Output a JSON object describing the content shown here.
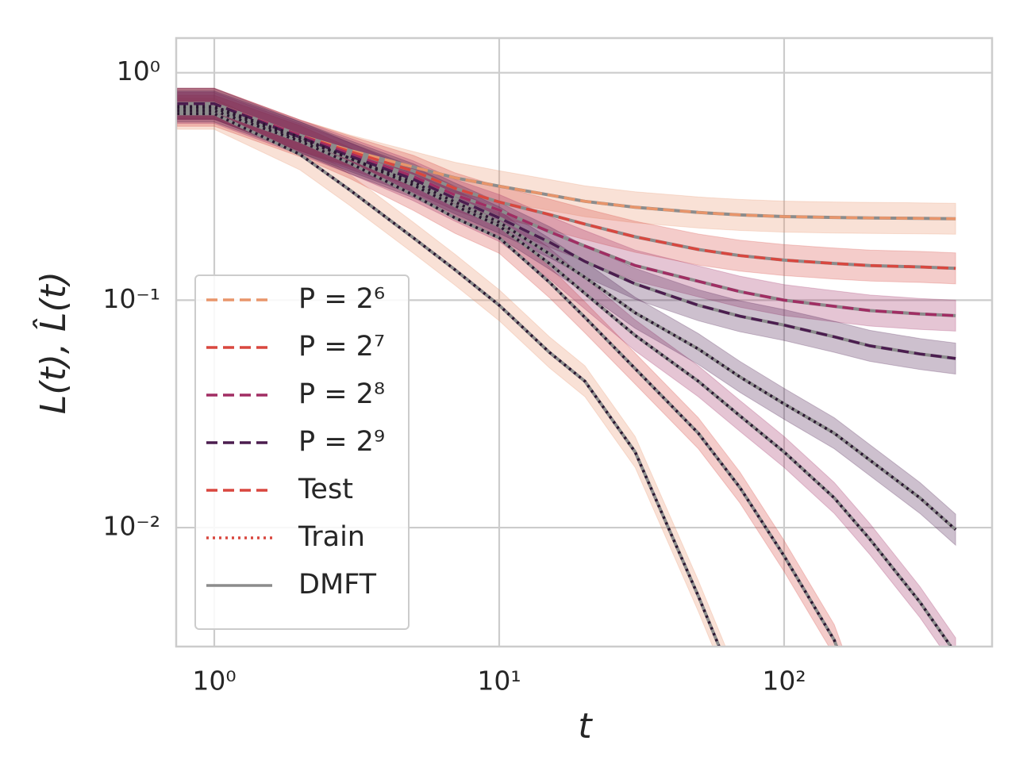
{
  "chart_data": {
    "type": "line",
    "xlabel": "t",
    "ylabel": "L(t), L̂(t)",
    "xscale": "log",
    "yscale": "log",
    "xlim": [
      0.735,
      537
    ],
    "ylim": [
      0.003,
      1.42
    ],
    "xticks": [
      {
        "value": 1,
        "label": "10⁰"
      },
      {
        "value": 10,
        "label": "10¹"
      },
      {
        "value": 100,
        "label": "10²"
      }
    ],
    "yticks": [
      {
        "value": 0.01,
        "label": "10⁻²"
      },
      {
        "value": 0.1,
        "label": "10⁻¹"
      },
      {
        "value": 1,
        "label": "10⁰"
      }
    ],
    "grid": true,
    "legend": "lower left",
    "band_ratio": 1.17,
    "x": [
      0.74,
      1,
      2,
      3,
      5,
      7,
      10,
      15,
      20,
      30,
      50,
      70,
      100,
      150,
      200,
      300,
      400
    ],
    "series": [
      {
        "name": "P = 2⁶",
        "color": "#e8956b",
        "test": [
          0.73,
          0.73,
          0.53,
          0.455,
          0.385,
          0.345,
          0.317,
          0.29,
          0.272,
          0.256,
          0.243,
          0.237,
          0.233,
          0.231,
          0.23,
          0.229,
          0.228
        ],
        "train": [
          0.66,
          0.66,
          0.437,
          0.304,
          0.188,
          0.136,
          0.095,
          0.059,
          0.044,
          0.0215,
          0.005,
          0.0018,
          null,
          null,
          null,
          null,
          null
        ]
      },
      {
        "name": "P = 2⁷",
        "color": "#d9473f",
        "test": [
          0.73,
          0.73,
          0.53,
          0.45,
          0.37,
          0.31,
          0.27,
          0.238,
          0.216,
          0.19,
          0.167,
          0.157,
          0.15,
          0.145,
          0.142,
          0.14,
          0.138
        ],
        "train": [
          0.68,
          0.68,
          0.5,
          0.4,
          0.29,
          0.23,
          0.188,
          0.12,
          0.084,
          0.05,
          0.026,
          0.015,
          0.0075,
          0.0032,
          0.0012,
          null,
          null
        ]
      },
      {
        "name": "P = 2⁸",
        "color": "#a12d63",
        "test": [
          0.73,
          0.73,
          0.53,
          0.44,
          0.35,
          0.29,
          0.249,
          0.2,
          0.173,
          0.142,
          0.121,
          0.109,
          0.1,
          0.094,
          0.09,
          0.087,
          0.0855
        ],
        "train": [
          0.7,
          0.7,
          0.51,
          0.42,
          0.32,
          0.26,
          0.212,
          0.145,
          0.107,
          0.07,
          0.044,
          0.031,
          0.0215,
          0.0135,
          0.0089,
          0.0047,
          0.0028
        ]
      },
      {
        "name": "P = 2⁹",
        "color": "#4b1d4f",
        "test": [
          0.73,
          0.73,
          0.52,
          0.43,
          0.34,
          0.28,
          0.23,
          0.18,
          0.148,
          0.118,
          0.095,
          0.085,
          0.0777,
          0.069,
          0.063,
          0.058,
          0.0554
        ],
        "train": [
          0.71,
          0.71,
          0.52,
          0.42,
          0.33,
          0.27,
          0.22,
          0.16,
          0.126,
          0.088,
          0.061,
          0.046,
          0.035,
          0.026,
          0.0198,
          0.0135,
          0.0098
        ]
      }
    ],
    "line_styles": [
      {
        "name": "Test",
        "dash": "dashed",
        "color": "#d9473f"
      },
      {
        "name": "Train",
        "dash": "dotted",
        "color": "#d9473f"
      },
      {
        "name": "DMFT",
        "dash": "solid",
        "color": "#8c8c8c"
      }
    ]
  }
}
